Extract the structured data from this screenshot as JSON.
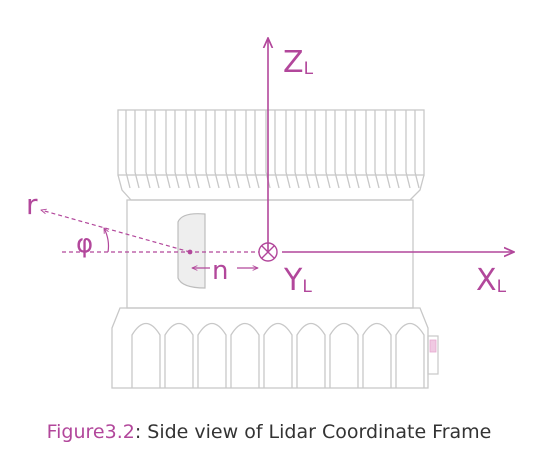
{
  "labels": {
    "z_axis": "Z",
    "z_sub": "L",
    "x_axis": "X",
    "x_sub": "L",
    "y_axis": "Y",
    "y_sub": "L",
    "r": "r",
    "phi": "φ",
    "n": "n"
  },
  "caption": {
    "figure": "Figure3.2",
    "text": ": Side view of Lidar Coordinate Frame"
  },
  "colors": {
    "accent": "#b2479b",
    "outline": "#c4c4c4",
    "text": "#333333"
  }
}
